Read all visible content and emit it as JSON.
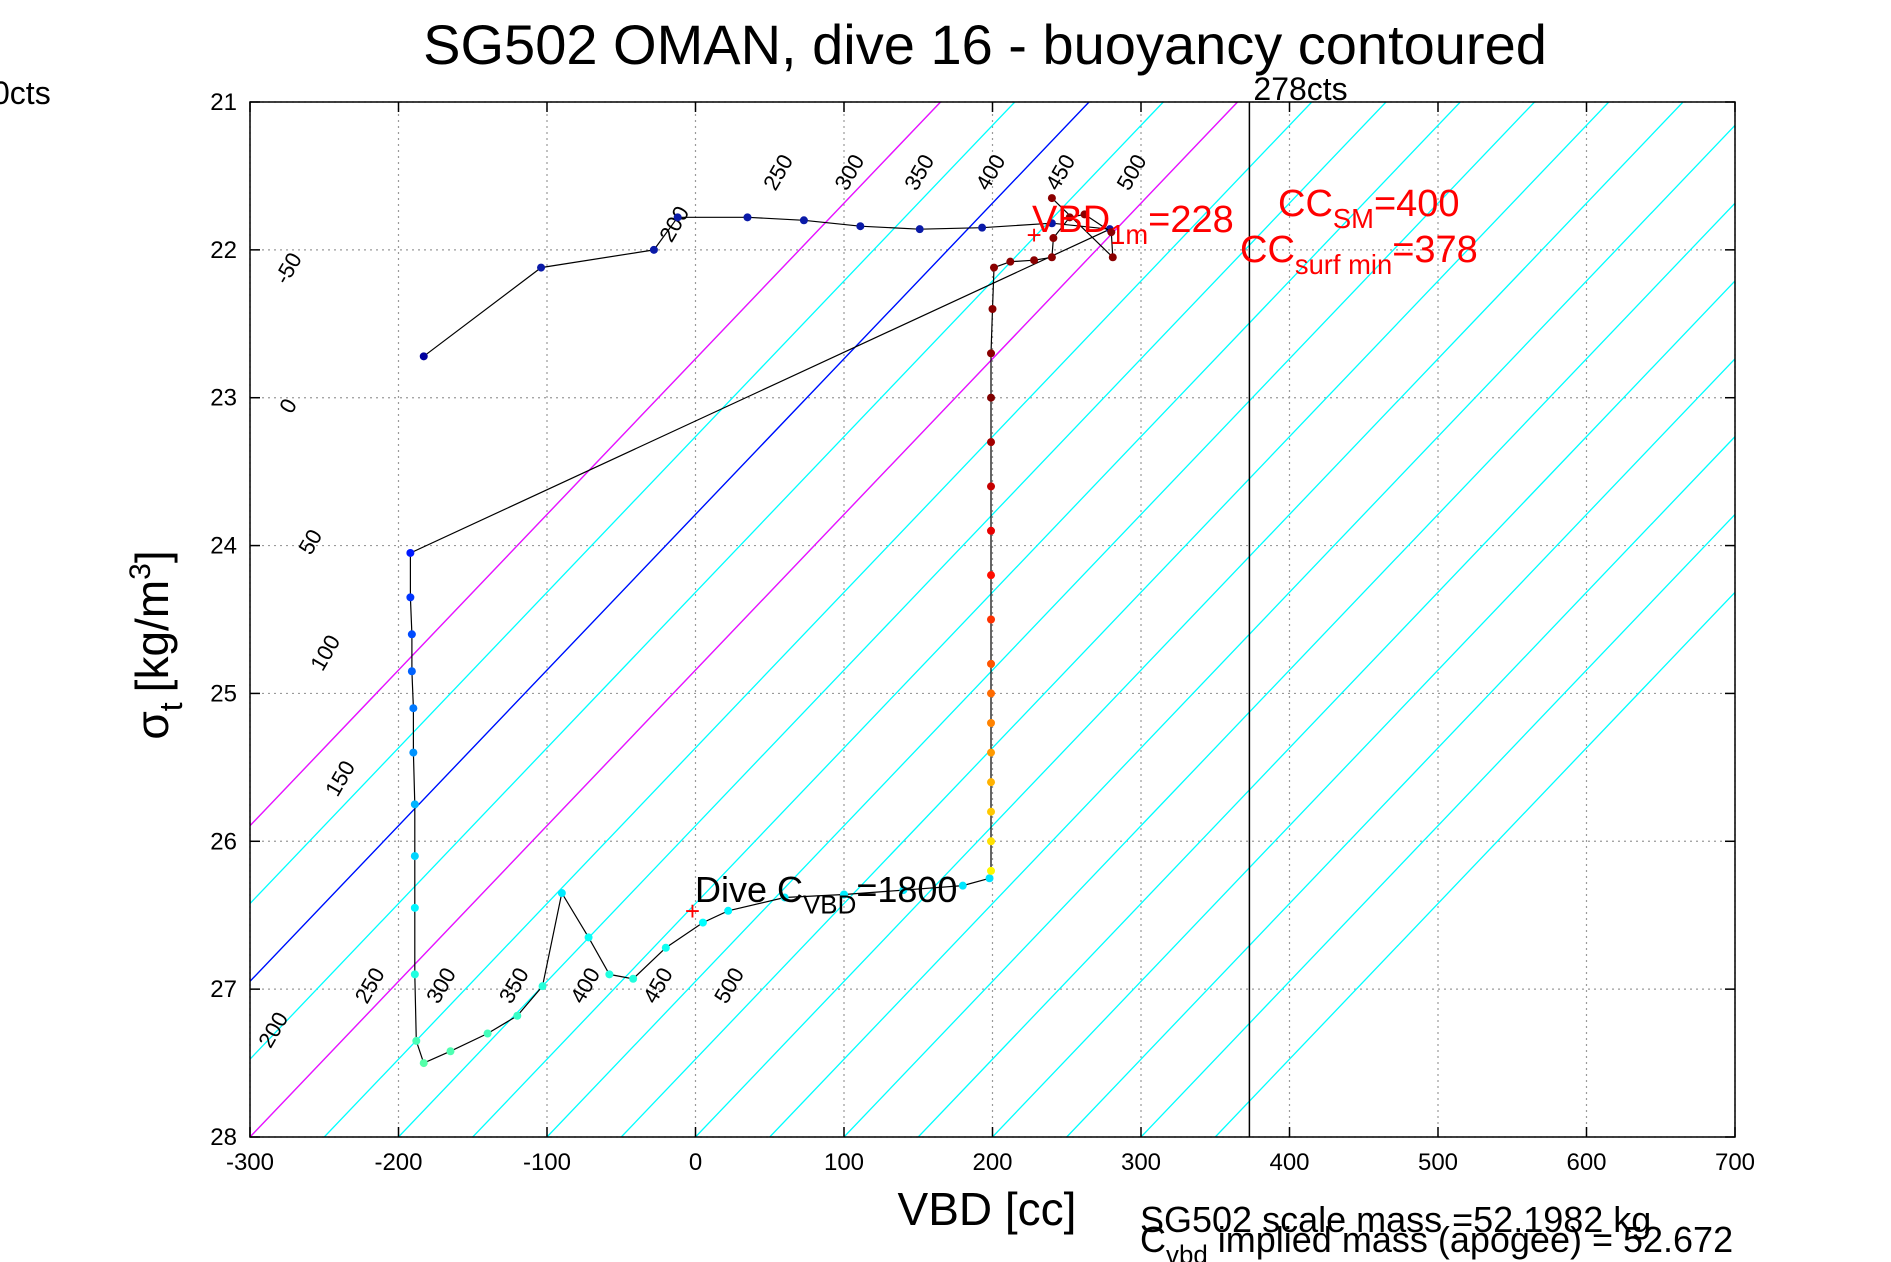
{
  "chart_data": {
    "type": "scatter",
    "title": "SG502 OMAN, dive 16 - buoyancy contoured",
    "xlabel": "VBD [cc]",
    "ylabel_base": "σ",
    "ylabel_sub": "t",
    "ylabel_unit": "[kg/m",
    "ylabel_sup": "3",
    "ylabel_close": "]",
    "xlim": [
      -300,
      700
    ],
    "ylim": [
      21,
      28
    ],
    "y_reversed": true,
    "grid": true,
    "xticks": [
      -300,
      -200,
      -100,
      0,
      100,
      200,
      300,
      400,
      500,
      600,
      700
    ],
    "yticks": [
      21,
      22,
      23,
      24,
      25,
      26,
      27,
      28
    ],
    "corner_label": "0cts",
    "vline": {
      "x": 373,
      "label": "278cts"
    },
    "contour_lines": {
      "cyan_intercepts": [
        -500,
        -450,
        -400,
        -350,
        -300,
        -250,
        -200,
        -150,
        -100,
        -50,
        0,
        50,
        100,
        150,
        200,
        250,
        300,
        350
      ],
      "magenta_intercepts": [
        -500,
        -300
      ],
      "blue_intercepts": [
        -400
      ],
      "top_labels": [
        {
          "text": "-50",
          "x": -270,
          "y": 22.15
        },
        {
          "text": "0",
          "x": -270,
          "y": 23.08
        },
        {
          "text": "50",
          "x": -255,
          "y": 24.0
        },
        {
          "text": "100",
          "x": -245,
          "y": 24.75
        },
        {
          "text": "150",
          "x": -235,
          "y": 25.6
        },
        {
          "text": "200",
          "x": -10,
          "y": 21.85
        },
        {
          "text": "250",
          "x": 60,
          "y": 21.5
        },
        {
          "text": "300",
          "x": 108,
          "y": 21.5
        },
        {
          "text": "350",
          "x": 155,
          "y": 21.5
        },
        {
          "text": "400",
          "x": 203,
          "y": 21.5
        },
        {
          "text": "450",
          "x": 250,
          "y": 21.5
        },
        {
          "text": "500",
          "x": 298,
          "y": 21.5
        }
      ],
      "bottom_labels": [
        {
          "text": "200",
          "x": -280,
          "y": 27.3
        },
        {
          "text": "250",
          "x": -215,
          "y": 27.0
        },
        {
          "text": "300",
          "x": -167,
          "y": 27.0
        },
        {
          "text": "350",
          "x": -118,
          "y": 27.0
        },
        {
          "text": "400",
          "x": -70,
          "y": 27.0
        },
        {
          "text": "450",
          "x": -21,
          "y": 27.0
        },
        {
          "text": "500",
          "x": 27,
          "y": 27.0
        }
      ]
    },
    "dive_series": {
      "name": "dive",
      "points": [
        [
          -183,
          22.72
        ],
        [
          -104,
          22.12
        ],
        [
          -28,
          22.0
        ],
        [
          -12,
          21.78
        ],
        [
          35,
          21.78
        ],
        [
          73,
          21.8
        ],
        [
          111,
          21.84
        ],
        [
          151,
          21.86
        ],
        [
          193,
          21.85
        ],
        [
          240,
          21.82
        ],
        [
          279,
          21.86
        ],
        [
          -192,
          24.05
        ],
        [
          -192,
          24.35
        ],
        [
          -191,
          24.6
        ],
        [
          -191,
          24.85
        ],
        [
          -190,
          25.1
        ],
        [
          -190,
          25.4
        ],
        [
          -189,
          25.75
        ],
        [
          -189,
          26.1
        ],
        [
          -189,
          26.45
        ],
        [
          -189,
          26.9
        ],
        [
          -188,
          27.35
        ],
        [
          -183,
          27.5
        ],
        [
          -165,
          27.42
        ],
        [
          -140,
          27.3
        ],
        [
          -120,
          27.18
        ],
        [
          -103,
          26.98
        ],
        [
          -90,
          26.35
        ],
        [
          -72,
          26.65
        ],
        [
          -58,
          26.9
        ],
        [
          -42,
          26.93
        ],
        [
          -20,
          26.72
        ],
        [
          5,
          26.55
        ],
        [
          22,
          26.47
        ],
        [
          60,
          26.38
        ],
        [
          100,
          26.36
        ],
        [
          140,
          26.33
        ],
        [
          180,
          26.3
        ],
        [
          198,
          26.25
        ]
      ]
    },
    "climb_series": {
      "name": "climb",
      "points": [
        [
          199,
          26.2
        ],
        [
          199,
          26.0
        ],
        [
          199,
          25.8
        ],
        [
          199,
          25.6
        ],
        [
          199,
          25.4
        ],
        [
          199,
          25.2
        ],
        [
          199,
          25.0
        ],
        [
          199,
          24.8
        ],
        [
          199,
          24.5
        ],
        [
          199,
          24.2
        ],
        [
          199,
          23.9
        ],
        [
          199,
          23.6
        ],
        [
          199,
          23.3
        ],
        [
          199,
          23.0
        ],
        [
          199,
          22.7
        ],
        [
          200,
          22.4
        ],
        [
          201,
          22.12
        ],
        [
          212,
          22.08
        ],
        [
          228,
          22.07
        ],
        [
          240,
          22.05
        ],
        [
          241,
          21.92
        ],
        [
          252,
          21.78
        ],
        [
          262,
          21.76
        ],
        [
          280,
          21.88
        ],
        [
          281,
          22.05
        ],
        [
          240,
          21.65
        ]
      ]
    },
    "markers": [
      {
        "text": "+",
        "x": 228,
        "y": 21.9,
        "color": "#ff0000"
      },
      {
        "text": "+",
        "x": -2,
        "y": 26.47,
        "color": "#ff0000"
      }
    ],
    "annotations": {
      "vbd1m": {
        "base": "VBD",
        "sub": "1m",
        "tail": "=228"
      },
      "ccsm": {
        "base": "CC",
        "sub": "SM",
        "tail": "=400"
      },
      "ccsurf": {
        "base": "CC",
        "sub": "surf min",
        "tail": "=378"
      },
      "dive_c": {
        "base": "Dive C",
        "sub": "VBD",
        "tail": "=1800"
      },
      "scale_mass": "SG502 scale mass =52.1982 kg",
      "cvbd": {
        "base": "C",
        "sub": "vbd",
        "tail": " implied mass (apogee) = 52.672"
      }
    },
    "colors": {
      "grid": "#9a9a9a",
      "contour_cyan": "#00ffff",
      "contour_magenta": "#ff00ff",
      "contour_blue": "#0000ff",
      "dive_line": "#000000",
      "annotation_red": "#ff0000",
      "vline": "#000000"
    }
  }
}
